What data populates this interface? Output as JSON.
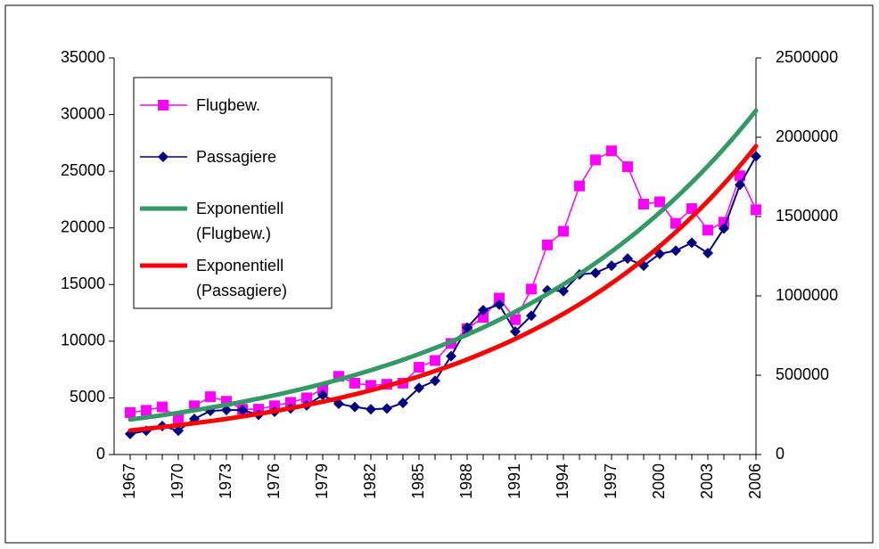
{
  "chart_data": {
    "type": "line",
    "categories": [
      "1967",
      null,
      null,
      "1970",
      null,
      null,
      "1973",
      null,
      null,
      "1976",
      null,
      null,
      "1979",
      null,
      null,
      "1982",
      null,
      null,
      "1985",
      null,
      null,
      "1988",
      null,
      null,
      "1991",
      null,
      null,
      "1994",
      null,
      null,
      "1997",
      null,
      null,
      "2000",
      null,
      null,
      "2003",
      null,
      null,
      "2006"
    ],
    "series": [
      {
        "name": "Flugbew.",
        "color": "#ff00ff",
        "marker": "square",
        "values": [
          3700,
          3900,
          4200,
          3200,
          4300,
          5100,
          4700,
          4000,
          4000,
          4300,
          4600,
          5000,
          5800,
          6900,
          6300,
          6100,
          6200,
          6300,
          7700,
          8300,
          9800,
          11100,
          12100,
          13800,
          11900,
          14600,
          18500,
          19700,
          23700,
          26000,
          26800,
          25400,
          22100,
          22300,
          20400,
          21700,
          19800,
          20500,
          24600,
          21600
        ]
      },
      {
        "name": "Passagiere",
        "color": "#000080",
        "marker": "diamond",
        "axis": "y2",
        "values": [
          130000,
          150000,
          180000,
          150000,
          225000,
          275000,
          280000,
          280000,
          250000,
          270000,
          290000,
          310000,
          375000,
          320000,
          300000,
          285000,
          290000,
          325000,
          420000,
          465000,
          620000,
          800000,
          910000,
          945000,
          775000,
          875000,
          1035000,
          1030000,
          1135000,
          1145000,
          1190000,
          1235000,
          1190000,
          1265000,
          1285000,
          1335000,
          1270000,
          1425000,
          1700000,
          1880000
        ]
      }
    ],
    "trendlines": [
      {
        "name": "Exponentiell (Flugbew.)",
        "color": "#339966",
        "fit": "exponential",
        "series": 0
      },
      {
        "name": "Exponentiell (Passagiere)",
        "color": "#ff0000",
        "fit": "exponential",
        "series": 1
      }
    ],
    "ylim": [
      0,
      35000
    ],
    "yticks": [
      0,
      5000,
      10000,
      15000,
      20000,
      25000,
      30000,
      35000
    ],
    "y2lim": [
      0,
      2500000
    ],
    "y2ticks": [
      0,
      500000,
      1000000,
      1500000,
      2000000,
      2500000
    ],
    "legend": "upper left"
  }
}
